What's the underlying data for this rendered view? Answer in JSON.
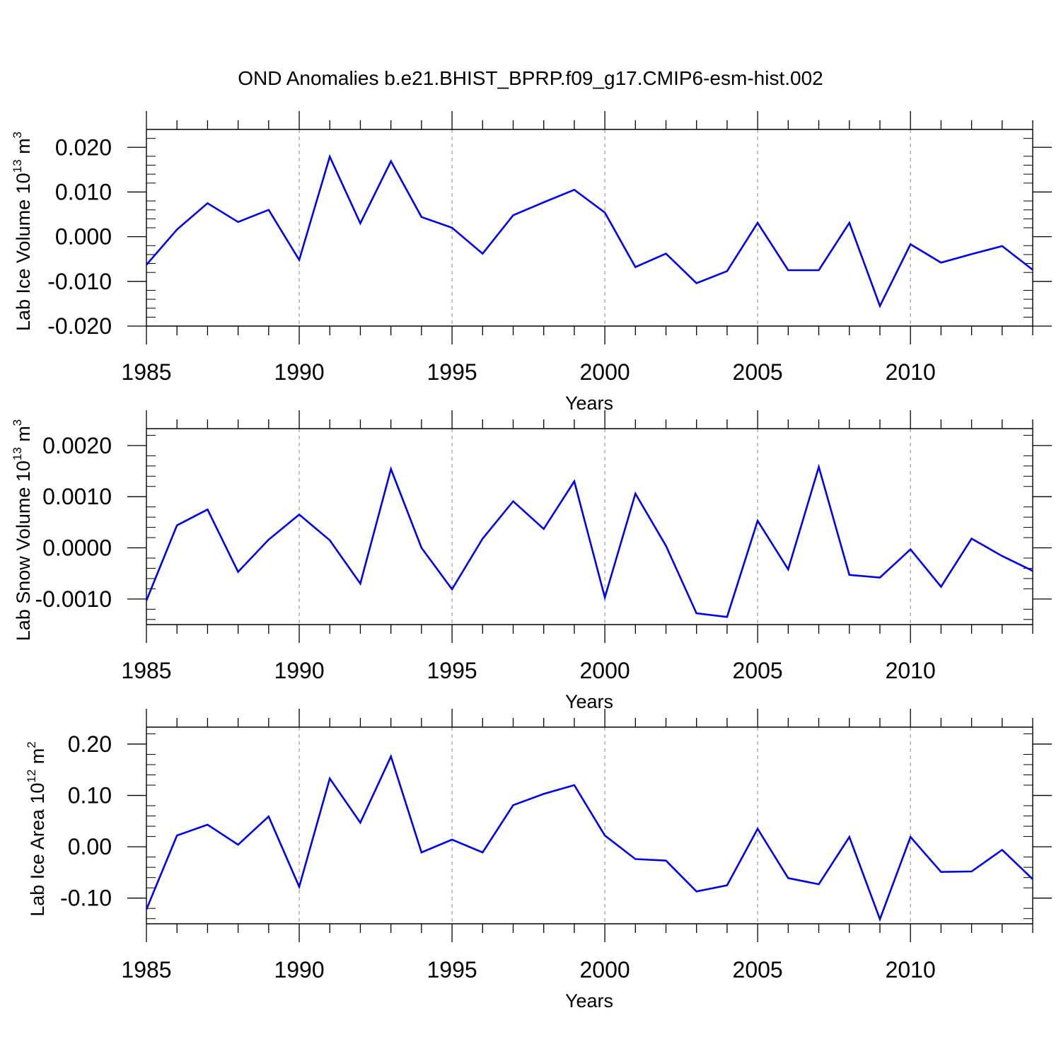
{
  "title": "OND Anomalies b.e21.BHIST_BPRP.f09_g17.CMIP6-esm-hist.002",
  "colors": {
    "line": "#0000ee",
    "axis": "#000000",
    "grid": "#9a9a9a"
  },
  "chart_data": [
    {
      "type": "line",
      "ylabel_main": "Lab Ice Volume 10",
      "ylabel_exp": "13",
      "ylabel_unit": " m",
      "ylabel_unit_exp": "3",
      "xlabel": "Years",
      "xlim": [
        1985,
        2014
      ],
      "ylim": [
        -0.02,
        0.024
      ],
      "yticks": [
        -0.02,
        -0.01,
        0.0,
        0.01,
        0.02
      ],
      "ytick_labels": [
        "-0.020",
        "-0.010",
        "0.000",
        "0.010",
        "0.020"
      ],
      "xticks": [
        1985,
        1990,
        1995,
        2000,
        2005,
        2010
      ],
      "xtick_labels": [
        "1985",
        "1990",
        "1995",
        "2000",
        "2005",
        "2010"
      ],
      "grid": "dashed vertical at major x ticks",
      "series": [
        {
          "x": [
            1985,
            1986,
            1987,
            1988,
            1989,
            1990,
            1991,
            1992,
            1993,
            1994,
            1995,
            1996,
            1997,
            1998,
            1999,
            2000,
            2001,
            2002,
            2003,
            2004,
            2005,
            2006,
            2007,
            2008,
            2009,
            2010,
            2011,
            2012,
            2013,
            2014
          ],
          "values": [
            -0.0063,
            0.0016,
            0.0075,
            0.0033,
            0.006,
            -0.0052,
            0.0179,
            0.003,
            0.0169,
            0.0044,
            0.002,
            -0.0038,
            0.0048,
            0.0077,
            0.0105,
            0.0054,
            -0.0068,
            -0.0038,
            -0.0104,
            -0.0077,
            0.0031,
            -0.0075,
            -0.0075,
            0.0031,
            -0.0155,
            -0.0017,
            -0.0058,
            -0.0039,
            -0.0021,
            -0.0074
          ]
        }
      ]
    },
    {
      "type": "line",
      "ylabel_main": "Lab Snow Volume 10",
      "ylabel_exp": "13",
      "ylabel_unit": " m",
      "ylabel_unit_exp": "3",
      "xlabel": "Years",
      "xlim": [
        1985,
        2014
      ],
      "ylim": [
        -0.0015,
        0.00233
      ],
      "yticks": [
        -0.001,
        0.0,
        0.001,
        0.002
      ],
      "ytick_labels": [
        "-0.0010",
        "0.0000",
        "0.0010",
        "0.0020"
      ],
      "xticks": [
        1985,
        1990,
        1995,
        2000,
        2005,
        2010
      ],
      "xtick_labels": [
        "1985",
        "1990",
        "1995",
        "2000",
        "2005",
        "2010"
      ],
      "grid": "dashed vertical at major x ticks",
      "series": [
        {
          "x": [
            1985,
            1986,
            1987,
            1988,
            1989,
            1990,
            1991,
            1992,
            1993,
            1994,
            1995,
            1996,
            1997,
            1998,
            1999,
            2000,
            2001,
            2002,
            2003,
            2004,
            2005,
            2006,
            2007,
            2008,
            2009,
            2010,
            2011,
            2012,
            2013,
            2014
          ],
          "values": [
            -0.00103,
            0.00044,
            0.00075,
            -0.00047,
            0.00016,
            0.00065,
            0.00015,
            -0.0007,
            0.00154,
            0.0,
            -0.00081,
            0.00018,
            0.00091,
            0.00037,
            0.0013,
            -0.00097,
            0.00106,
            4e-05,
            -0.00128,
            -0.00135,
            0.00053,
            -0.00042,
            0.00158,
            -0.00053,
            -0.00058,
            -3e-05,
            -0.00076,
            0.00018,
            -0.00016,
            -0.00045
          ]
        }
      ]
    },
    {
      "type": "line",
      "ylabel_main": "Lab Ice Area 10",
      "ylabel_exp": "12",
      "ylabel_unit": " m",
      "ylabel_unit_exp": "2",
      "xlabel": "Years",
      "xlim": [
        1985,
        2014
      ],
      "ylim": [
        -0.15,
        0.233
      ],
      "yticks": [
        -0.1,
        0.0,
        0.1,
        0.2
      ],
      "ytick_labels": [
        "-0.10",
        "0.00",
        "0.10",
        "0.20"
      ],
      "xticks": [
        1985,
        1990,
        1995,
        2000,
        2005,
        2010
      ],
      "xtick_labels": [
        "1985",
        "1990",
        "1995",
        "2000",
        "2005",
        "2010"
      ],
      "grid": "dashed vertical at major x ticks",
      "series": [
        {
          "x": [
            1985,
            1986,
            1987,
            1988,
            1989,
            1990,
            1991,
            1992,
            1993,
            1994,
            1995,
            1996,
            1997,
            1998,
            1999,
            2000,
            2001,
            2002,
            2003,
            2004,
            2005,
            2006,
            2007,
            2008,
            2009,
            2010,
            2011,
            2012,
            2013,
            2014
          ],
          "values": [
            -0.122,
            0.022,
            0.043,
            0.004,
            0.059,
            -0.078,
            0.133,
            0.047,
            0.176,
            -0.011,
            0.014,
            -0.011,
            0.081,
            0.103,
            0.12,
            0.022,
            -0.024,
            -0.027,
            -0.087,
            -0.075,
            0.035,
            -0.061,
            -0.073,
            0.019,
            -0.141,
            0.019,
            -0.049,
            -0.048,
            -0.006,
            -0.063
          ]
        }
      ]
    }
  ]
}
